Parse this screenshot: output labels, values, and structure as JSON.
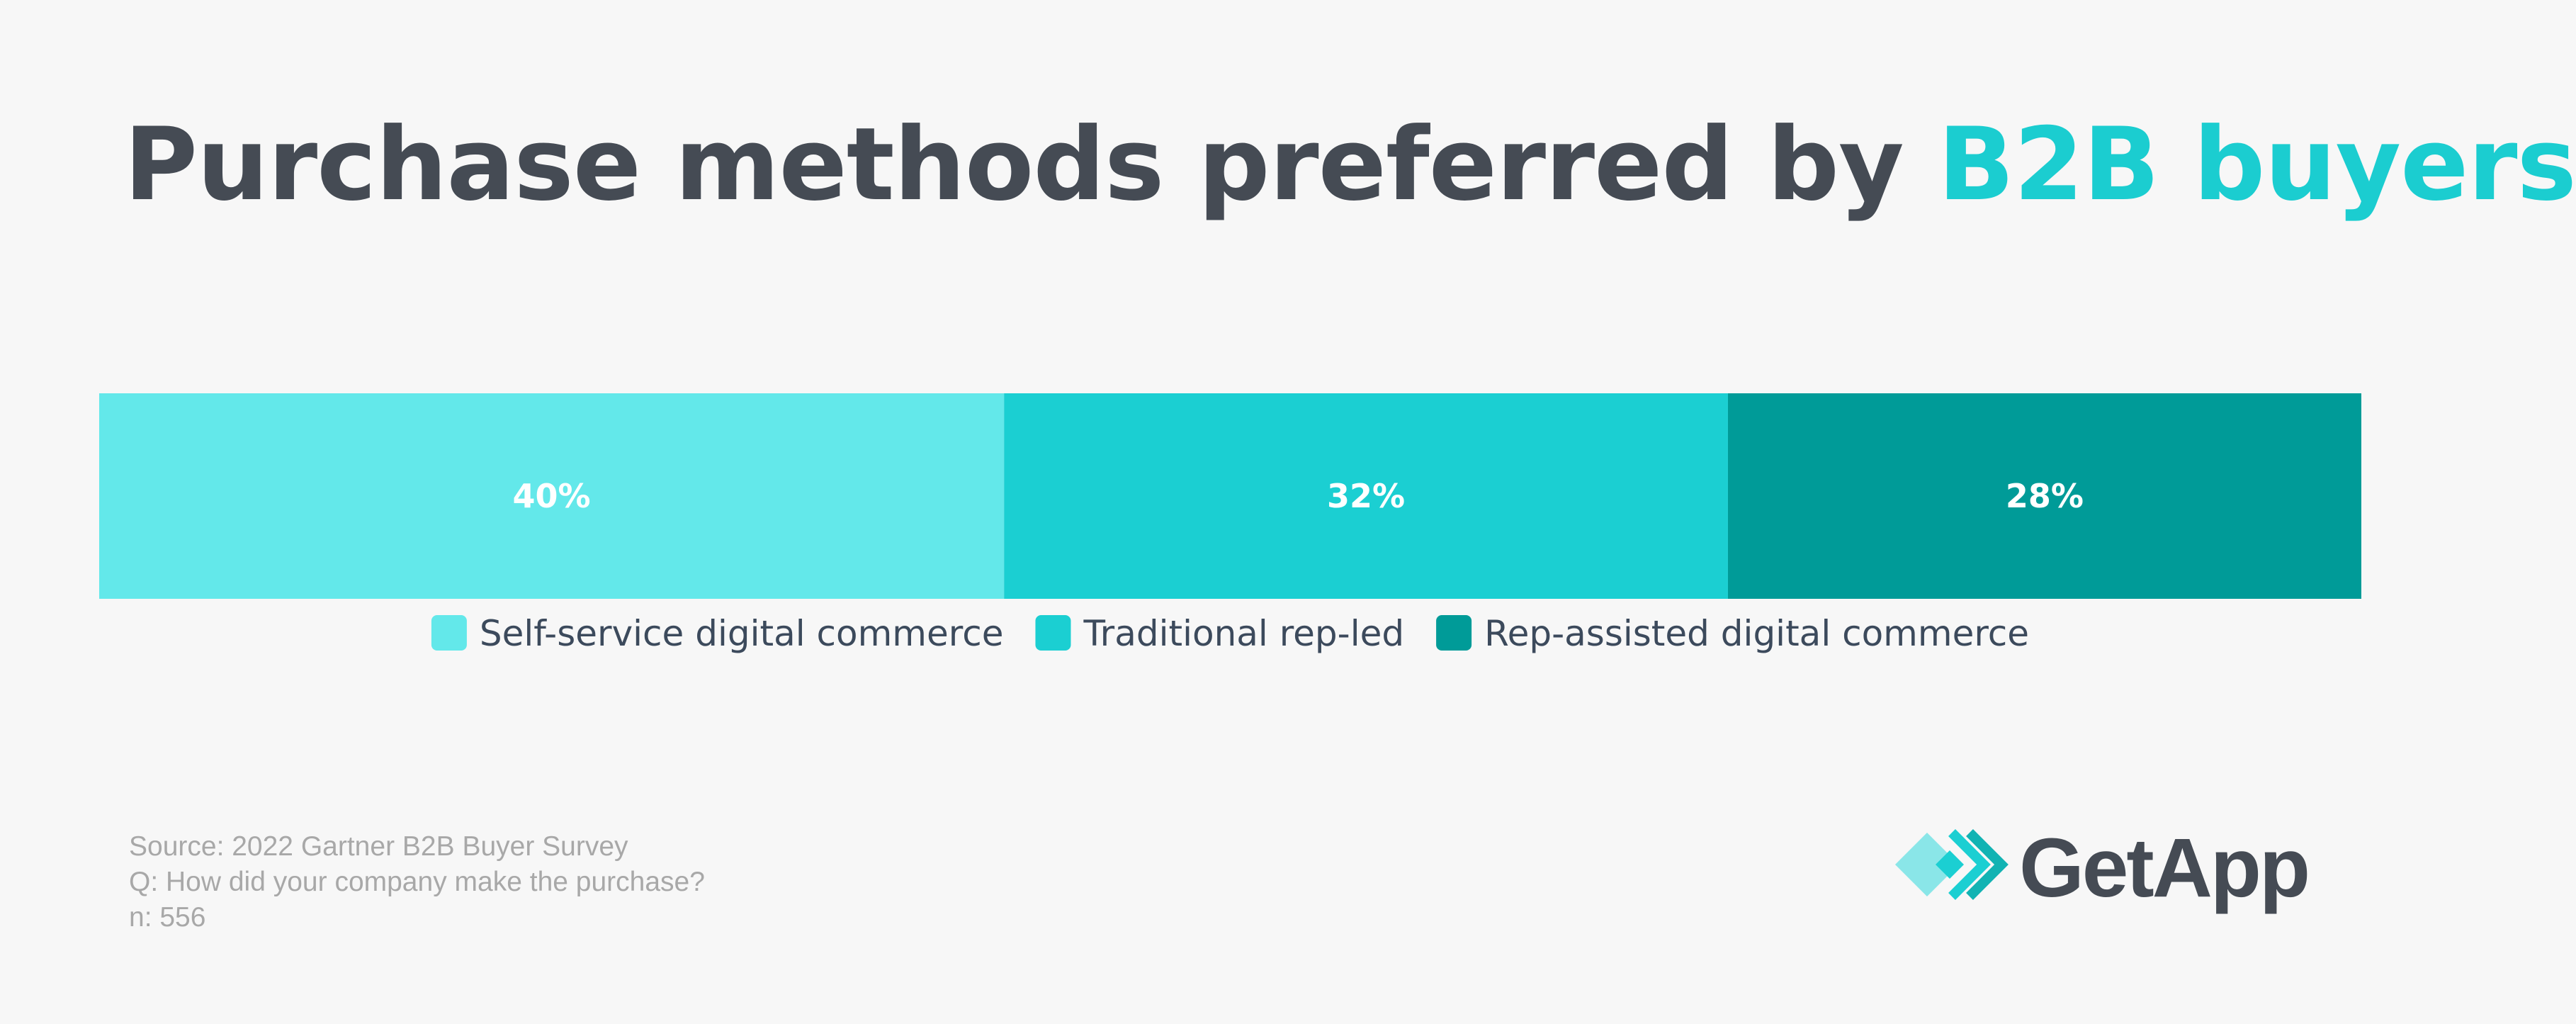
{
  "title": {
    "prefix": "Purchase methods preferred by ",
    "highlight": "B2B buyers"
  },
  "chart_data": {
    "type": "bar",
    "orientation": "horizontal-stacked-100",
    "series": [
      {
        "name": "Self-service digital commerce",
        "value": 40,
        "label": "40%",
        "color": "#63e8ea"
      },
      {
        "name": "Traditional rep-led",
        "value": 32,
        "label": "32%",
        "color": "#1bcfd2"
      },
      {
        "name": "Rep-assisted digital commerce",
        "value": 28,
        "label": "28%",
        "color": "#009b98"
      }
    ],
    "legend_position": "bottom-center",
    "total": 100
  },
  "source": {
    "line1": "Source: 2022 Gartner B2B Buyer Survey",
    "line2": "Q: How did your company make the purchase?",
    "line3": "n: 556"
  },
  "logo": {
    "text": "GetApp"
  }
}
